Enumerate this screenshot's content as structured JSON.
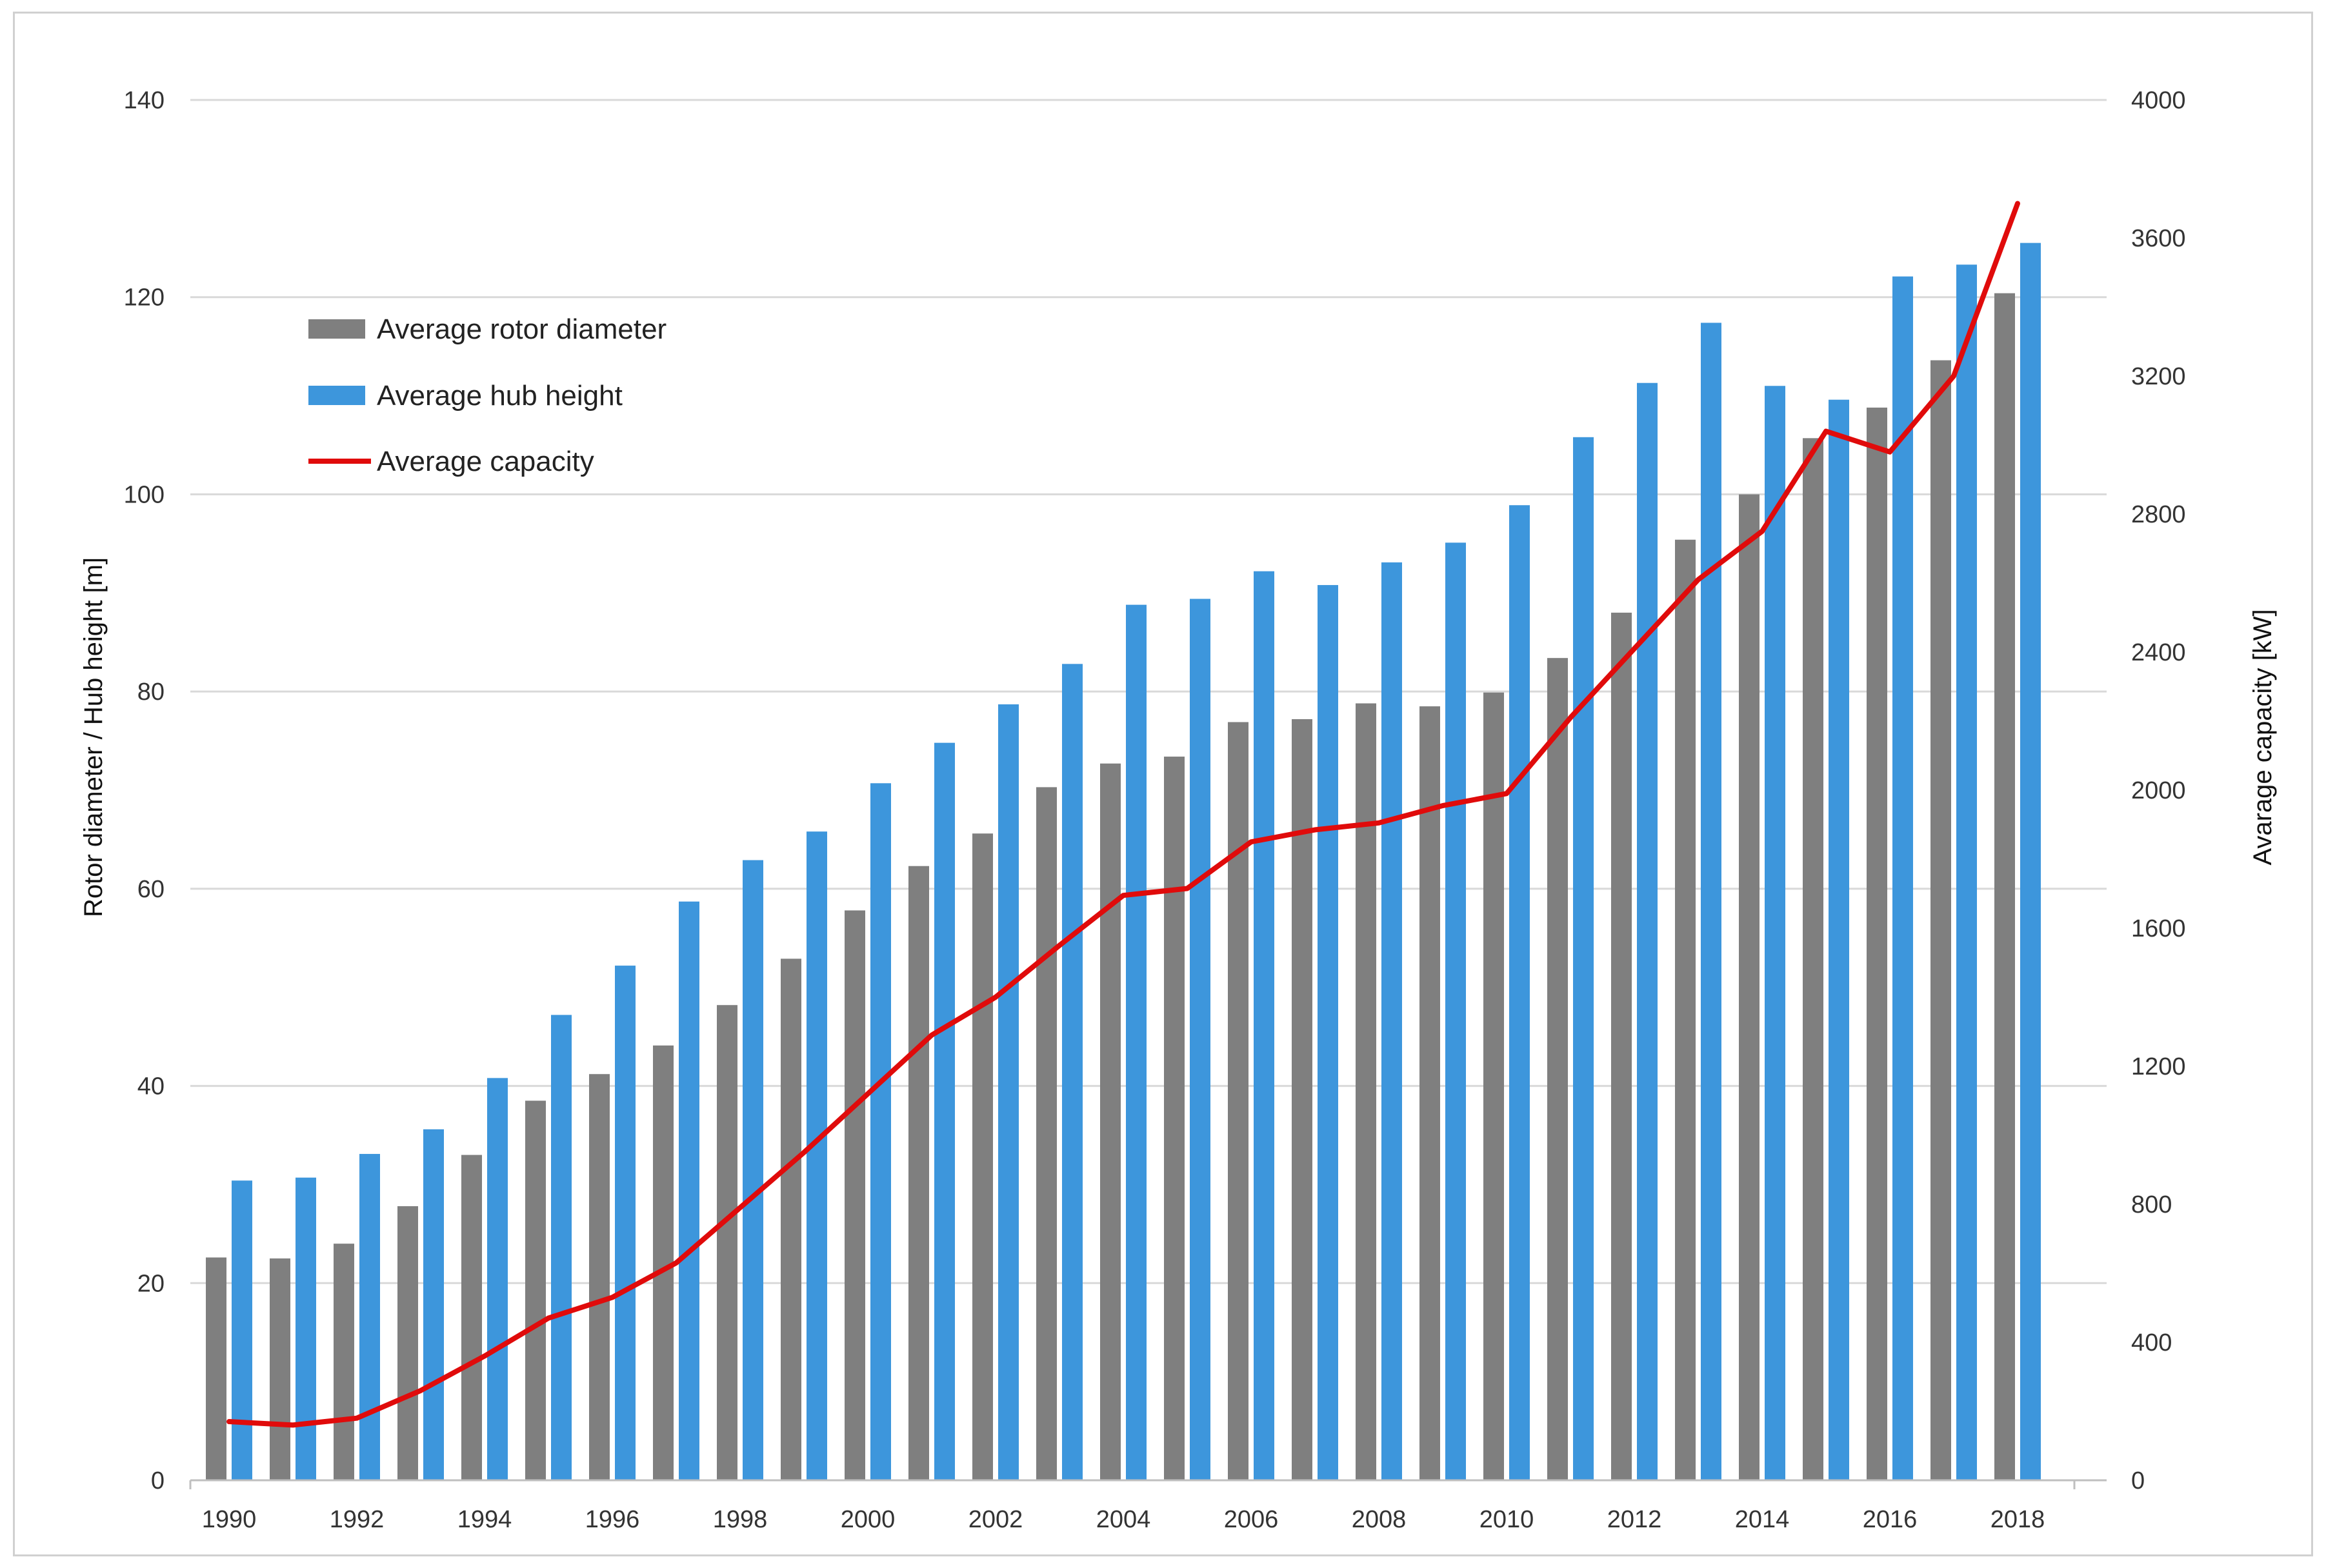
{
  "chart_data": {
    "type": "bar",
    "categories": [
      "1990",
      "1991",
      "1992",
      "1993",
      "1994",
      "1995",
      "1996",
      "1997",
      "1998",
      "1999",
      "2000",
      "2001",
      "2002",
      "2003",
      "2004",
      "2005",
      "2006",
      "2007",
      "2008",
      "2009",
      "2010",
      "2011",
      "2012",
      "2013",
      "2014",
      "2015",
      "2016",
      "2017",
      "2018"
    ],
    "x_tick_labels": [
      "1990",
      "1992",
      "1994",
      "1996",
      "1998",
      "2000",
      "2002",
      "2004",
      "2006",
      "2008",
      "2010",
      "2012",
      "2014",
      "2016",
      "2018"
    ],
    "series": [
      {
        "name": "Average rotor diameter",
        "type": "bar",
        "axis": "left",
        "color": "#7f7f7f",
        "values": [
          22.6,
          22.5,
          24.0,
          27.8,
          33.0,
          38.5,
          41.2,
          44.1,
          48.2,
          52.9,
          57.8,
          62.3,
          65.6,
          70.3,
          72.7,
          73.4,
          76.9,
          77.2,
          78.8,
          78.5,
          79.9,
          83.4,
          88.0,
          95.4,
          100.0,
          105.7,
          108.8,
          113.6,
          120.4
        ]
      },
      {
        "name": "Average hub height",
        "type": "bar",
        "axis": "left",
        "color": "#3d96dc",
        "values": [
          30.4,
          30.7,
          33.1,
          35.6,
          40.8,
          47.2,
          52.2,
          58.7,
          62.9,
          65.8,
          70.7,
          74.8,
          78.7,
          82.8,
          88.8,
          89.4,
          92.2,
          90.8,
          93.1,
          95.1,
          98.9,
          105.8,
          111.3,
          117.4,
          111.0,
          109.6,
          122.1,
          123.3,
          125.5
        ]
      },
      {
        "name": "Average capacity",
        "type": "line",
        "axis": "right",
        "color": "#e00b0b",
        "values": [
          170,
          160,
          180,
          260,
          360,
          470,
          530,
          630,
          790,
          950,
          1120,
          1290,
          1400,
          1550,
          1695,
          1715,
          1850,
          1885,
          1905,
          1955,
          1990,
          2210,
          2410,
          2610,
          2750,
          3040,
          2980,
          3200,
          3700
        ]
      }
    ],
    "y_left": {
      "label": "Rotor diameter / Hub height [m]",
      "ylim": [
        0,
        140
      ],
      "ticks": [
        "0",
        "20",
        "40",
        "60",
        "80",
        "100",
        "120",
        "140"
      ]
    },
    "y_right": {
      "label": "Avarage capacity [kW]",
      "ylim": [
        0,
        4000
      ],
      "ticks": [
        "0",
        "400",
        "800",
        "1200",
        "1600",
        "2000",
        "2400",
        "2800",
        "3200",
        "3600",
        "4000"
      ]
    },
    "grid": true,
    "legend_position": "top-left"
  }
}
